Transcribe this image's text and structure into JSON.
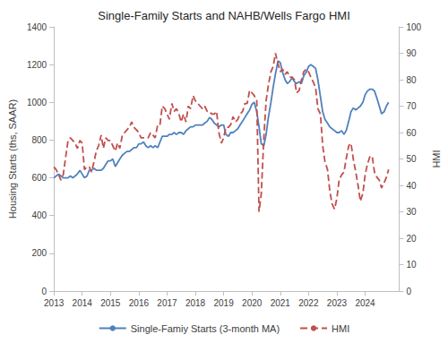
{
  "chart_data": {
    "type": "line",
    "title": "Single-Family Starts and NAHB/Wells Fargo HMI",
    "ylabel": "Housing Starts (ths, SAAR)",
    "y2label": "HMI",
    "x": [
      2013.0,
      2013.08,
      2013.17,
      2013.25,
      2013.33,
      2013.42,
      2013.5,
      2013.58,
      2013.67,
      2013.75,
      2013.83,
      2013.92,
      2014.0,
      2014.08,
      2014.17,
      2014.25,
      2014.33,
      2014.42,
      2014.5,
      2014.58,
      2014.67,
      2014.75,
      2014.83,
      2014.92,
      2015.0,
      2015.08,
      2015.17,
      2015.25,
      2015.33,
      2015.42,
      2015.5,
      2015.58,
      2015.67,
      2015.75,
      2015.83,
      2015.92,
      2016.0,
      2016.08,
      2016.17,
      2016.25,
      2016.33,
      2016.42,
      2016.5,
      2016.58,
      2016.67,
      2016.75,
      2016.83,
      2016.92,
      2017.0,
      2017.08,
      2017.17,
      2017.25,
      2017.33,
      2017.42,
      2017.5,
      2017.58,
      2017.67,
      2017.75,
      2017.83,
      2017.92,
      2018.0,
      2018.08,
      2018.17,
      2018.25,
      2018.33,
      2018.42,
      2018.5,
      2018.58,
      2018.67,
      2018.75,
      2018.83,
      2018.92,
      2019.0,
      2019.08,
      2019.17,
      2019.25,
      2019.33,
      2019.42,
      2019.5,
      2019.58,
      2019.67,
      2019.75,
      2019.83,
      2019.92,
      2020.0,
      2020.08,
      2020.17,
      2020.25,
      2020.33,
      2020.42,
      2020.5,
      2020.58,
      2020.67,
      2020.75,
      2020.83,
      2020.92,
      2021.0,
      2021.08,
      2021.17,
      2021.25,
      2021.33,
      2021.42,
      2021.5,
      2021.58,
      2021.67,
      2021.75,
      2021.83,
      2021.92,
      2022.0,
      2022.08,
      2022.17,
      2022.25,
      2022.33,
      2022.42,
      2022.5,
      2022.58,
      2022.67,
      2022.75,
      2022.83,
      2022.92,
      2023.0,
      2023.08,
      2023.17,
      2023.25,
      2023.33,
      2023.42,
      2023.5,
      2023.58,
      2023.67,
      2023.75,
      2023.83,
      2023.92,
      2024.0,
      2024.08,
      2024.17,
      2024.25,
      2024.33,
      2024.42,
      2024.5,
      2024.58,
      2024.67,
      2024.75,
      2024.83
    ],
    "xlim": [
      2013,
      2025.2
    ],
    "xticks": [
      2013,
      2014,
      2015,
      2016,
      2017,
      2018,
      2019,
      2020,
      2021,
      2022,
      2023,
      2024
    ],
    "ylim": [
      0,
      1400
    ],
    "yticks": [
      0,
      200,
      400,
      600,
      800,
      1000,
      1200,
      1400
    ],
    "y2lim": [
      0,
      100
    ],
    "y2ticks": [
      0,
      10,
      20,
      30,
      40,
      50,
      60,
      70,
      80,
      90,
      100
    ],
    "grid": false,
    "legend": "bottom",
    "series": [
      {
        "name": "Single-Famiy Starts (3-month MA)",
        "color": "#4f81bd",
        "line_style": "solid",
        "axis": "y",
        "values": [
          600,
          610,
          620,
          610,
          600,
          600,
          600,
          610,
          600,
          610,
          620,
          640,
          620,
          600,
          610,
          640,
          640,
          650,
          640,
          640,
          640,
          650,
          670,
          690,
          690,
          700,
          660,
          680,
          700,
          720,
          730,
          740,
          740,
          750,
          760,
          760,
          780,
          780,
          790,
          770,
          760,
          770,
          760,
          770,
          760,
          790,
          820,
          820,
          820,
          830,
          830,
          840,
          830,
          840,
          840,
          830,
          850,
          860,
          870,
          870,
          880,
          880,
          880,
          880,
          890,
          900,
          920,
          910,
          890,
          880,
          870,
          880,
          880,
          830,
          820,
          840,
          840,
          850,
          860,
          880,
          900,
          920,
          940,
          960,
          990,
          1000,
          950,
          870,
          780,
          770,
          830,
          920,
          1000,
          1080,
          1150,
          1220,
          1210,
          1160,
          1120,
          1100,
          1110,
          1130,
          1110,
          1100,
          1110,
          1100,
          1140,
          1160,
          1190,
          1200,
          1190,
          1180,
          1120,
          1030,
          950,
          910,
          890,
          870,
          860,
          850,
          840,
          840,
          850,
          830,
          850,
          900,
          950,
          970,
          960,
          970,
          980,
          1000,
          1040,
          1060,
          1070,
          1070,
          1060,
          1020,
          980,
          940,
          950,
          980,
          1000
        ]
      },
      {
        "name": "HMI",
        "color": "#c0504d",
        "line_style": "dashed",
        "axis": "y2",
        "values": [
          47,
          46,
          44,
          42,
          44,
          51,
          57,
          58,
          57,
          56,
          54,
          57,
          56,
          46,
          47,
          47,
          45,
          49,
          53,
          55,
          59,
          54,
          58,
          57,
          57,
          55,
          53,
          56,
          54,
          59,
          60,
          61,
          62,
          64,
          62,
          61,
          60,
          58,
          58,
          58,
          58,
          60,
          59,
          58,
          63,
          63,
          70,
          69,
          67,
          65,
          71,
          68,
          69,
          67,
          64,
          67,
          64,
          70,
          69,
          74,
          72,
          71,
          70,
          69,
          70,
          68,
          68,
          67,
          67,
          68,
          60,
          56,
          58,
          62,
          62,
          63,
          66,
          64,
          65,
          67,
          68,
          71,
          71,
          76,
          75,
          74,
          72,
          30,
          37,
          58,
          72,
          78,
          83,
          85,
          90,
          86,
          83,
          84,
          82,
          83,
          81,
          81,
          80,
          75,
          76,
          80,
          83,
          84,
          83,
          81,
          79,
          77,
          69,
          67,
          55,
          49,
          46,
          38,
          33,
          31,
          35,
          42,
          44,
          45,
          50,
          55,
          56,
          50,
          45,
          40,
          34,
          37,
          44,
          48,
          51,
          51,
          45,
          43,
          42,
          39,
          41,
          43,
          46
        ]
      }
    ]
  }
}
